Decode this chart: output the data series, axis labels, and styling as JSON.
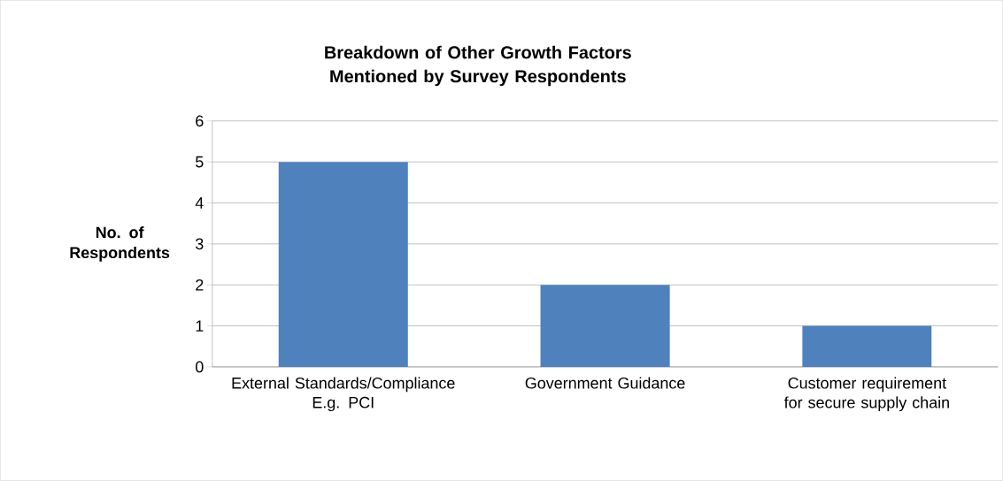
{
  "chart_data": {
    "type": "bar",
    "title": "Breakdown of Other Growth Factors Mentioned by Survey Respondents",
    "ylabel": "No. of Respondents",
    "categories": [
      "External Standards/Compliance E.g. PCI",
      "Government Guidance",
      "Customer requirement for secure supply chain"
    ],
    "values": [
      5,
      2,
      1
    ],
    "color": "#4f81bd",
    "ylim": [
      0,
      6
    ],
    "yticks": [
      0,
      1,
      2,
      3,
      4,
      5,
      6
    ],
    "grid": "y"
  }
}
